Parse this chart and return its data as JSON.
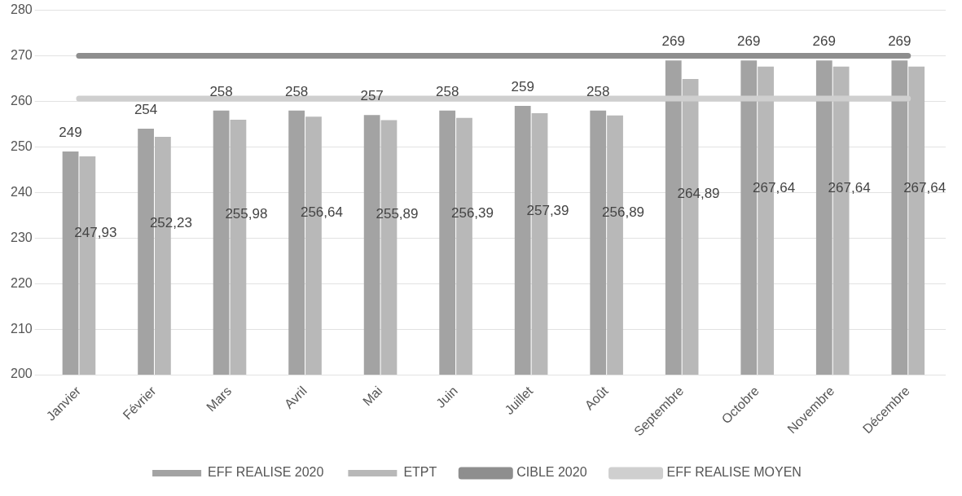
{
  "chart_data": {
    "type": "bar",
    "categories": [
      "Janvier",
      "Février",
      "Mars",
      "Avril",
      "Mai",
      "Juin",
      "Juillet",
      "Août",
      "Septembre",
      "Octobre",
      "Novembre",
      "Décembre"
    ],
    "series": [
      {
        "name": "EFF REALISE 2020",
        "color": "#a3a3a3",
        "values": [
          249,
          254,
          258,
          258,
          257,
          258,
          259,
          258,
          269,
          269,
          269,
          269
        ],
        "value_labels": [
          "249",
          "254",
          "258",
          "258",
          "257",
          "258",
          "259",
          "258",
          "269",
          "269",
          "269",
          "269"
        ]
      },
      {
        "name": "ETPT",
        "color": "#b8b8b8",
        "values": [
          247.93,
          252.23,
          255.98,
          256.64,
          255.89,
          256.39,
          257.39,
          256.89,
          264.89,
          267.64,
          267.64,
          267.64
        ],
        "value_labels": [
          "247,93",
          "252,23",
          "255,98",
          "256,64",
          "255,89",
          "256,39",
          "257,39",
          "256,89",
          "264,89",
          "267,64",
          "267,64",
          "267,64"
        ]
      },
      {
        "name": "CIBLE 2020",
        "type": "line",
        "color": "#8e8e8e",
        "values": [
          270,
          270,
          270,
          270,
          270,
          270,
          270,
          270,
          270,
          270,
          270,
          270
        ]
      },
      {
        "name": "EFF REALISE MOYEN",
        "type": "line",
        "color": "#cfcfcf",
        "values": [
          260.6,
          260.6,
          260.6,
          260.6,
          260.6,
          260.6,
          260.6,
          260.6,
          260.6,
          260.6,
          260.6,
          260.6
        ]
      }
    ],
    "ylim": [
      200,
      280
    ],
    "yticks": [
      200,
      210,
      220,
      230,
      240,
      250,
      260,
      270,
      280
    ],
    "grid": "y",
    "legend": "bottom",
    "marker": "none"
  }
}
